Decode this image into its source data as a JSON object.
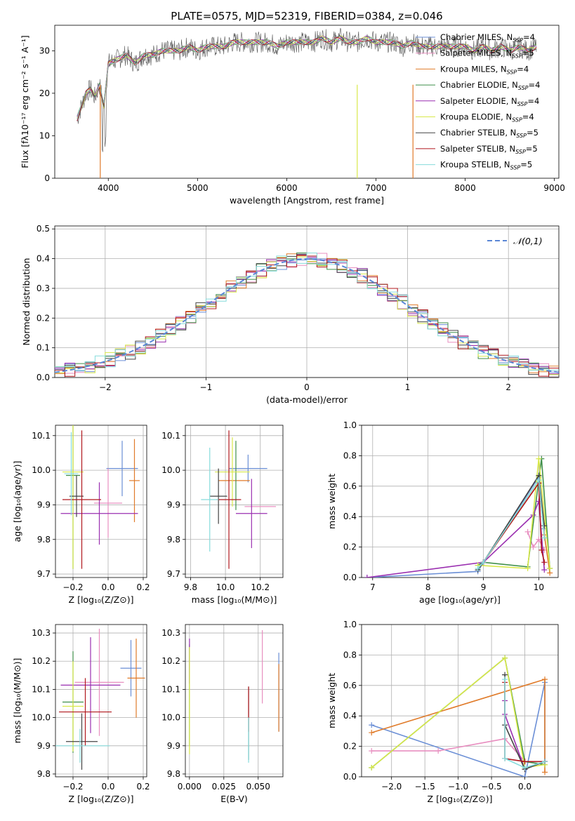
{
  "suptitle": "PLATE=0575, MJD=52319, FIBERID=0384, z=0.046",
  "colors": {
    "series": [
      "#6b8fd6",
      "#e88fc0",
      "#e07b2a",
      "#3f8f4a",
      "#9a2fb0",
      "#d8e84a",
      "#444444",
      "#b0181e",
      "#86dcdc"
    ],
    "grid": "#b0b0b0"
  },
  "chart_data": [
    {
      "id": "spectrum",
      "type": "line",
      "xlabel": "wavelength [Angstrom, rest frame]",
      "ylabel": "Flux [fλ10⁻¹⁷ erg cm⁻² s⁻¹ A⁻¹]",
      "xlim": [
        3400,
        9050
      ],
      "ylim": [
        0,
        36
      ],
      "xticks": [
        4000,
        5000,
        6000,
        7000,
        8000,
        9000
      ],
      "yticks": [
        0,
        10,
        20,
        30
      ],
      "grid": false,
      "legend": "right",
      "x": [
        3650,
        3700,
        3750,
        3800,
        3850,
        3900,
        3950,
        4000,
        4100,
        4200,
        4300,
        4400,
        4500,
        4600,
        4700,
        4800,
        4900,
        5000,
        5100,
        5200,
        5300,
        5400,
        5500,
        5600,
        5700,
        5800,
        5900,
        6000,
        6100,
        6200,
        6300,
        6400,
        6500,
        6600,
        6700,
        6800,
        6900,
        7000,
        7100,
        7200,
        7300,
        7400,
        7500,
        7600,
        7700,
        7800,
        7900,
        8000,
        8100,
        8200,
        8300,
        8400,
        8500,
        8600,
        8700,
        8800
      ],
      "y": [
        14,
        17,
        20,
        21,
        19,
        22,
        17,
        27,
        28,
        29,
        27,
        29,
        29,
        30,
        30,
        30,
        31,
        30,
        31,
        31,
        31,
        32,
        32,
        32,
        32,
        32,
        31,
        32,
        32,
        32,
        32,
        33,
        32,
        33,
        32,
        32,
        33,
        32,
        32,
        32,
        31,
        32,
        31,
        31,
        31,
        31,
        31,
        31,
        30,
        31,
        30,
        31,
        30,
        31,
        30,
        31
      ],
      "series": [
        {
          "name": "Chabrier MILES, N$_{SSP}$=4"
        },
        {
          "name": "Salpeter MILES, N$_{SSP}$=5"
        },
        {
          "name": "Kroupa MILES, N$_{SSP}$=4"
        },
        {
          "name": "Chabrier ELODIE, N$_{SSP}$=4"
        },
        {
          "name": "Salpeter ELODIE, N$_{SSP}$=4"
        },
        {
          "name": "Kroupa ELODIE, N$_{SSP}$=4"
        },
        {
          "name": "Chabrier STELIB, N$_{SSP}$=5"
        },
        {
          "name": "Salpeter STELIB, N$_{SSP}$=5"
        },
        {
          "name": "Kroupa STELIB, N$_{SSP}$=5"
        }
      ]
    },
    {
      "id": "residuals",
      "type": "line",
      "xlabel": "(data-model)/error",
      "ylabel": "Normed distribution",
      "xlim": [
        -2.5,
        2.5
      ],
      "ylim": [
        0,
        0.51
      ],
      "xticks": [
        -2,
        -1,
        0,
        1,
        2
      ],
      "yticks": [
        0.0,
        0.1,
        0.2,
        0.3,
        0.4,
        0.5
      ],
      "grid": true,
      "legend": "top-right",
      "legend_label": "𝒩(0,1)",
      "bin_width": 0.1
    },
    {
      "id": "age-vs-z",
      "type": "scatter",
      "xlabel": "Z [log₁₀(Z/Z⊙)]",
      "ylabel": "age  [log₁₀(age/yr)]",
      "xlim": [
        -0.3,
        0.22
      ],
      "ylim": [
        9.69,
        10.13
      ],
      "xticks": [
        -0.2,
        0.0,
        0.2
      ],
      "yticks": [
        9.7,
        9.8,
        9.9,
        10.0,
        10.1
      ],
      "grid": true,
      "points": [
        {
          "x": 0.08,
          "y": 10.005,
          "xerr": 0.09,
          "yerr": 0.08
        },
        {
          "x": 0.0,
          "y": 9.905,
          "xerr": 0.08,
          "yerr": 0.1
        },
        {
          "x": 0.15,
          "y": 9.97,
          "xerr": 0.03,
          "yerr": 0.12
        },
        {
          "x": -0.2,
          "y": 9.985,
          "xerr": 0.04,
          "yerr": 0.27
        },
        {
          "x": -0.05,
          "y": 9.875,
          "xerr": 0.22,
          "yerr": 0.09
        },
        {
          "x": -0.2,
          "y": 9.995,
          "xerr": 0.06,
          "yerr": 0.28
        },
        {
          "x": -0.18,
          "y": 9.925,
          "xerr": 0.04,
          "yerr": 0.06
        },
        {
          "x": -0.15,
          "y": 9.915,
          "xerr": 0.11,
          "yerr": 0.2
        },
        {
          "x": -0.21,
          "y": 9.99,
          "xerr": 0.04,
          "yerr": 0.12
        }
      ]
    },
    {
      "id": "age-vs-mass",
      "type": "scatter",
      "xlabel": "mass [log₁₀(M/M⊙)]",
      "ylabel": "",
      "xlim": [
        9.77,
        10.33
      ],
      "ylim": [
        9.69,
        10.13
      ],
      "xticks": [
        9.8,
        10.0,
        10.2
      ],
      "yticks": [
        9.7,
        9.8,
        9.9,
        10.0,
        10.1
      ],
      "grid": true,
      "points": [
        {
          "x": 10.13,
          "y": 10.005,
          "xerr": 0.11,
          "yerr": 0.04
        },
        {
          "x": 10.2,
          "y": 9.895,
          "xerr": 0.09,
          "yerr": 0.0
        },
        {
          "x": 10.05,
          "y": 9.97,
          "xerr": 0.09,
          "yerr": 0.0
        },
        {
          "x": 10.06,
          "y": 9.985,
          "xerr": 0.0,
          "yerr": 0.1
        },
        {
          "x": 10.15,
          "y": 9.875,
          "xerr": 0.09,
          "yerr": 0.1
        },
        {
          "x": 10.04,
          "y": 9.995,
          "xerr": 0.1,
          "yerr": 0.1
        },
        {
          "x": 9.96,
          "y": 9.925,
          "xerr": 0.05,
          "yerr": 0.08
        },
        {
          "x": 10.02,
          "y": 9.915,
          "xerr": 0.07,
          "yerr": 0.2
        },
        {
          "x": 9.91,
          "y": 9.915,
          "xerr": 0.05,
          "yerr": 0.15
        }
      ]
    },
    {
      "id": "weight-vs-age",
      "type": "line",
      "xlabel": "age  [log₁₀(age/yr)]",
      "ylabel": "mass weight",
      "xlim": [
        6.8,
        10.35
      ],
      "ylim": [
        0,
        1.0
      ],
      "xticks": [
        7,
        8,
        9,
        10
      ],
      "yticks": [
        0.0,
        0.2,
        0.4,
        0.6,
        0.8,
        1.0
      ],
      "grid": true,
      "series": [
        {
          "x": [
            6.9,
            8.9,
            9.0,
            10.0,
            10.1
          ],
          "y": [
            0.0,
            0.04,
            0.1,
            0.66,
            0.32
          ]
        },
        {
          "x": [
            9.8,
            9.9,
            10.0,
            10.1
          ],
          "y": [
            0.3,
            0.2,
            0.25,
            0.18
          ]
        },
        {
          "x": [
            9.0,
            10.0,
            10.1,
            10.2
          ],
          "y": [
            0.1,
            0.62,
            0.28,
            0.03
          ]
        },
        {
          "x": [
            8.9,
            9.0,
            9.8,
            10.05,
            10.2
          ],
          "y": [
            0.08,
            0.1,
            0.07,
            0.78,
            0.06
          ]
        },
        {
          "x": [
            6.9,
            9.0,
            9.9,
            10.0,
            10.1
          ],
          "y": [
            0.0,
            0.1,
            0.41,
            0.5,
            0.05
          ]
        },
        {
          "x": [
            8.9,
            9.8,
            10.0,
            10.2
          ],
          "y": [
            0.08,
            0.06,
            0.78,
            0.06
          ]
        },
        {
          "x": [
            8.9,
            9.0,
            10.0,
            10.1
          ],
          "y": [
            0.05,
            0.1,
            0.67,
            0.34
          ]
        },
        {
          "x": [
            9.0,
            10.0,
            10.05,
            10.1
          ],
          "y": [
            0.1,
            0.62,
            0.18,
            0.1
          ]
        },
        {
          "x": [
            8.9,
            9.0,
            10.0,
            10.1
          ],
          "y": [
            0.06,
            0.1,
            0.64,
            0.26
          ]
        }
      ]
    },
    {
      "id": "mass-vs-z",
      "type": "scatter",
      "xlabel": "Z [log₁₀(Z/Z⊙)]",
      "ylabel": "mass [log₁₀(M/M⊙)]",
      "xlim": [
        -0.3,
        0.22
      ],
      "ylim": [
        9.79,
        10.33
      ],
      "xticks": [
        -0.2,
        0.0,
        0.2
      ],
      "yticks": [
        9.8,
        9.9,
        10.0,
        10.1,
        10.2,
        10.3
      ],
      "grid": true,
      "points": [
        {
          "x": 0.13,
          "y": 10.175,
          "xerr": 0.06,
          "yerr": 0.1
        },
        {
          "x": -0.05,
          "y": 10.125,
          "xerr": 0.14,
          "yerr": 0.19
        },
        {
          "x": 0.16,
          "y": 10.14,
          "xerr": 0.05,
          "yerr": 0.14
        },
        {
          "x": -0.2,
          "y": 10.055,
          "xerr": 0.06,
          "yerr": 0.18
        },
        {
          "x": -0.1,
          "y": 10.115,
          "xerr": 0.17,
          "yerr": 0.17
        },
        {
          "x": -0.2,
          "y": 10.04,
          "xerr": 0.06,
          "yerr": 0.16
        },
        {
          "x": -0.15,
          "y": 9.915,
          "xerr": 0.09,
          "yerr": 0.1
        },
        {
          "x": -0.13,
          "y": 10.02,
          "xerr": 0.15,
          "yerr": 0.12
        },
        {
          "x": -0.16,
          "y": 9.9,
          "xerr": 0.17,
          "yerr": 0.06
        }
      ]
    },
    {
      "id": "mass-vs-ebv",
      "type": "scatter",
      "xlabel": "E(B-V)",
      "ylabel": "",
      "xlim": [
        -0.003,
        0.068
      ],
      "ylim": [
        9.79,
        10.33
      ],
      "xticks": [
        0.0,
        0.025,
        0.05
      ],
      "xtick_labels": [
        "0.000",
        "0.025",
        "0.050"
      ],
      "yticks": [
        9.8,
        9.9,
        10.0,
        10.1,
        10.2,
        10.3
      ],
      "grid": true,
      "points": [
        {
          "x": 0.065,
          "y": 10.09,
          "xerr": 0.0,
          "yerr": 0.14
        },
        {
          "x": 0.053,
          "y": 10.18,
          "xerr": 0.0,
          "yerr": 0.13
        },
        {
          "x": 0.065,
          "y": 10.07,
          "xerr": 0.0,
          "yerr": 0.12
        },
        {
          "x": 0.0,
          "y": 10.08,
          "xerr": 0.0,
          "yerr": 0.18
        },
        {
          "x": 0.0,
          "y": 10.2,
          "xerr": 0.0,
          "yerr": 0.08
        },
        {
          "x": 0.0,
          "y": 10.06,
          "xerr": 0.0,
          "yerr": 0.19
        },
        {
          "x": 0.043,
          "y": 9.98,
          "xerr": 0.0,
          "yerr": 0.13
        },
        {
          "x": 0.043,
          "y": 10.03,
          "xerr": 0.0,
          "yerr": 0.08
        },
        {
          "x": 0.043,
          "y": 9.92,
          "xerr": 0.0,
          "yerr": 0.08
        }
      ]
    },
    {
      "id": "weight-vs-z",
      "type": "line",
      "xlabel": "Z [log₁₀(Z/Z⊙)]",
      "ylabel": "mass weight",
      "xlim": [
        -2.45,
        0.5
      ],
      "ylim": [
        0,
        1.0
      ],
      "xticks": [
        -2.0,
        -1.5,
        -1.0,
        -0.5,
        0.0
      ],
      "yticks": [
        0.0,
        0.2,
        0.4,
        0.6,
        0.8,
        1.0
      ],
      "grid": true,
      "series": [
        {
          "x": [
            -2.3,
            0.0,
            0.3,
            0.3
          ],
          "y": [
            0.34,
            0.0,
            0.62,
            0.1
          ]
        },
        {
          "x": [
            -2.3,
            -1.3,
            -0.3,
            0.0
          ],
          "y": [
            0.17,
            0.17,
            0.25,
            0.1
          ]
        },
        {
          "x": [
            -2.3,
            0.3,
            0.3
          ],
          "y": [
            0.29,
            0.64,
            0.03
          ]
        },
        {
          "x": [
            -2.3,
            -0.3,
            0.0,
            0.3
          ],
          "y": [
            0.06,
            0.78,
            0.1,
            0.08
          ]
        },
        {
          "x": [
            -0.3,
            -0.3,
            0.0,
            0.3
          ],
          "y": [
            0.5,
            0.41,
            0.05,
            0.1
          ]
        },
        {
          "x": [
            -2.3,
            -0.3,
            0.0,
            0.3
          ],
          "y": [
            0.06,
            0.78,
            0.06,
            0.08
          ]
        },
        {
          "x": [
            -0.3,
            -0.3,
            0.0,
            0.3
          ],
          "y": [
            0.67,
            0.34,
            0.05,
            0.1
          ]
        },
        {
          "x": [
            -0.3,
            -0.3,
            0.0,
            0.3
          ],
          "y": [
            0.62,
            0.12,
            0.1,
            0.1
          ]
        },
        {
          "x": [
            -0.3,
            -0.3,
            0.0,
            0.3
          ],
          "y": [
            0.64,
            0.12,
            0.06,
            0.1
          ]
        }
      ]
    }
  ]
}
